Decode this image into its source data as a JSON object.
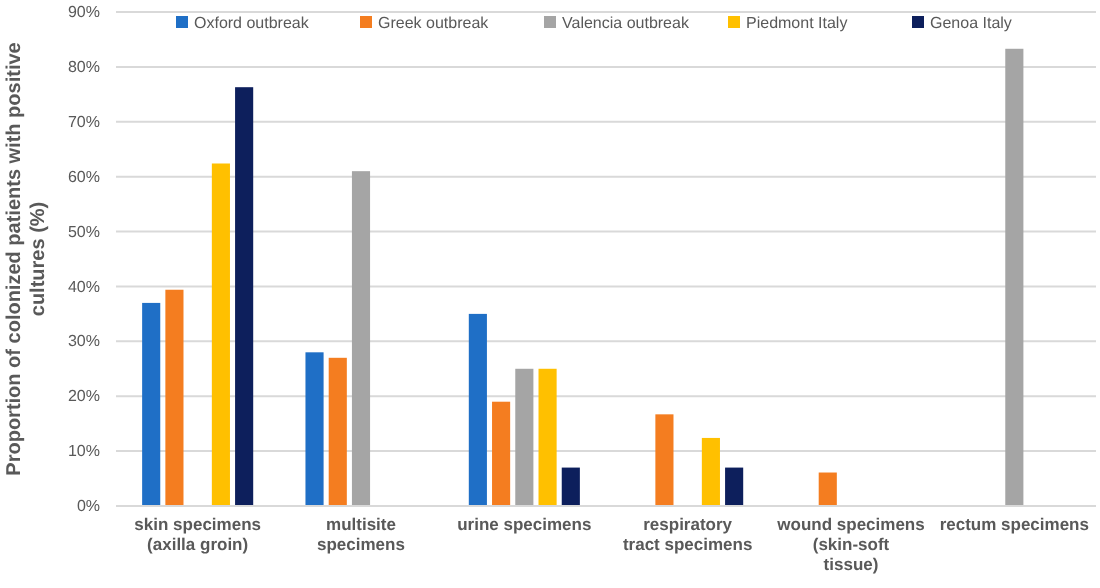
{
  "chart_data": {
    "type": "bar",
    "ylabel": "Proportion of colonized patients with positive cultures (%)",
    "categories": [
      "skin specimens (axilla groin)",
      "multisite specimens",
      "urine specimens",
      "respiratory tract specimens",
      "wound specimens (skin-soft tissue)",
      "rectum specimens"
    ],
    "series": [
      {
        "name": "Oxford outbreak",
        "color": "#1f6fc6",
        "values": [
          37,
          28,
          35,
          null,
          null,
          null
        ]
      },
      {
        "name": "Greek outbreak",
        "color": "#f47d20",
        "values": [
          39.4,
          27,
          19,
          16.7,
          6.1,
          null
        ]
      },
      {
        "name": "Valencia outbreak",
        "color": "#a5a5a5",
        "values": [
          null,
          61,
          25,
          null,
          null,
          83.3
        ]
      },
      {
        "name": "Piedmont Italy",
        "color": "#ffc000",
        "values": [
          62.4,
          null,
          25,
          12.4,
          null,
          null
        ]
      },
      {
        "name": "Genoa Italy",
        "color": "#0d1f5c",
        "values": [
          76.3,
          null,
          7,
          7,
          null,
          null
        ]
      }
    ],
    "ylim": [
      0,
      90
    ],
    "yticks": [
      {
        "value": 0,
        "label": "0%"
      },
      {
        "value": 10,
        "label": "10%"
      },
      {
        "value": 20,
        "label": "20%"
      },
      {
        "value": 30,
        "label": "30%"
      },
      {
        "value": 40,
        "label": "40%"
      },
      {
        "value": 50,
        "label": "50%"
      },
      {
        "value": 60,
        "label": "60%"
      },
      {
        "value": 70,
        "label": "70%"
      },
      {
        "value": 80,
        "label": "80%"
      },
      {
        "value": 90,
        "label": "90%"
      }
    ],
    "grid": "y",
    "legend": "top"
  }
}
